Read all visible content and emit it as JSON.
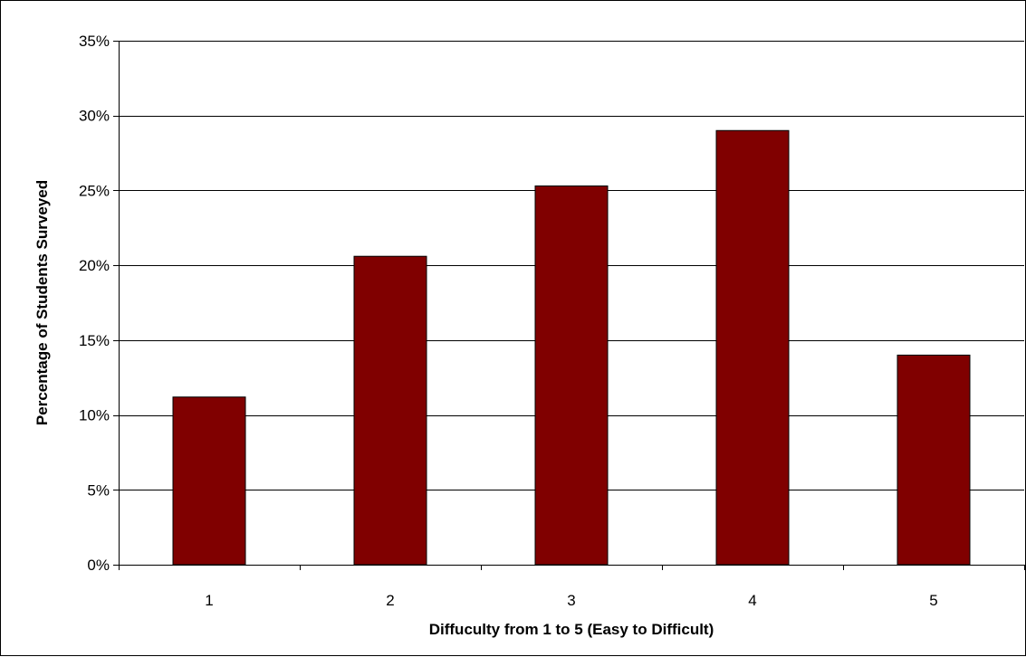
{
  "chart_data": {
    "type": "bar",
    "title": "",
    "xlabel": "Diffuculty from 1 to 5 (Easy to Difficult)",
    "ylabel": "Percentage of Students Surveyed",
    "categories": [
      "1",
      "2",
      "3",
      "4",
      "5"
    ],
    "values": [
      11.2,
      20.6,
      25.3,
      29.0,
      14.0
    ],
    "ylim": [
      0,
      35
    ],
    "yticks": [
      "0%",
      "5%",
      "10%",
      "15%",
      "20%",
      "25%",
      "30%",
      "35%"
    ],
    "ytick_values": [
      0,
      5,
      10,
      15,
      20,
      25,
      30,
      35
    ],
    "grid": true,
    "legend": "none",
    "bar_color": "#800000"
  }
}
